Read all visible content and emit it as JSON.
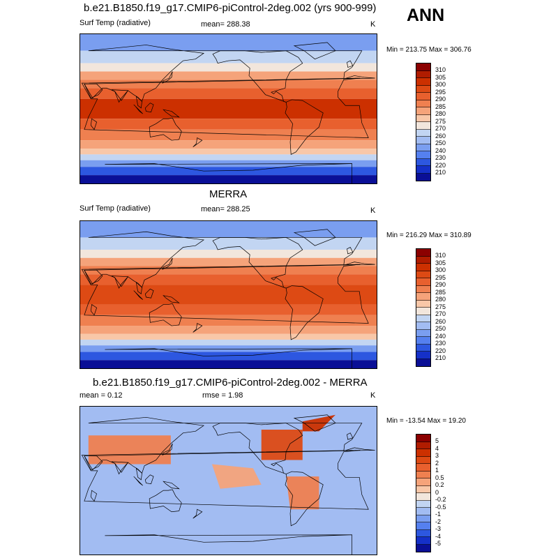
{
  "ann_label": "ANN",
  "panels": [
    {
      "id": "model",
      "title": "b.e21.B1850.f19_g17.CMIP6-piControl-2deg.002 (yrs 900-999)",
      "left_label": "Surf Temp (radiative)",
      "center_label": "mean= 288.38",
      "units": "K",
      "minmax": "Min = 213.75 Max = 306.76",
      "field": "model"
    },
    {
      "id": "obs",
      "title": "MERRA",
      "left_label": "Surf Temp (radiative)",
      "center_label": "mean= 288.25",
      "units": "K",
      "minmax": "Min = 216.29 Max = 310.89",
      "field": "obs"
    },
    {
      "id": "diff",
      "title": "b.e21.B1850.f19_g17.CMIP6-piControl-2deg.002 - MERRA",
      "left_label": "mean =   0.12",
      "center_label": "rmse =   1.98",
      "units": "K",
      "minmax": "Min = -13.54 Max =  19.20",
      "field": "diff"
    }
  ],
  "colorbars": {
    "abs": {
      "ticks": [
        "310",
        "305",
        "300",
        "295",
        "290",
        "285",
        "280",
        "275",
        "270",
        "260",
        "250",
        "240",
        "230",
        "220",
        "210"
      ],
      "colors": [
        "#8b0000",
        "#b01c00",
        "#cc3000",
        "#dd4a14",
        "#e8602e",
        "#ef8050",
        "#f5a37a",
        "#f8c7a8",
        "#f2e6dc",
        "#c2d5f2",
        "#a2bcf2",
        "#7a9ef0",
        "#5580ef",
        "#2d57e0",
        "#1530c8",
        "#0a0f96"
      ]
    },
    "diff": {
      "ticks": [
        "5",
        "4",
        "3",
        "2",
        "1",
        "0.5",
        "0.2",
        "0",
        "-0.2",
        "-0.5",
        "-1",
        "-2",
        "-3",
        "-4",
        "-5"
      ],
      "colors": [
        "#8b0000",
        "#b01c00",
        "#cc3000",
        "#dd4a14",
        "#e8602e",
        "#ef8050",
        "#f5a37a",
        "#f8c7a8",
        "#f2e6dc",
        "#c2d5f2",
        "#a2bcf2",
        "#7a9ef0",
        "#5580ef",
        "#2d57e0",
        "#1530c8",
        "#0a0f96"
      ]
    }
  }
}
